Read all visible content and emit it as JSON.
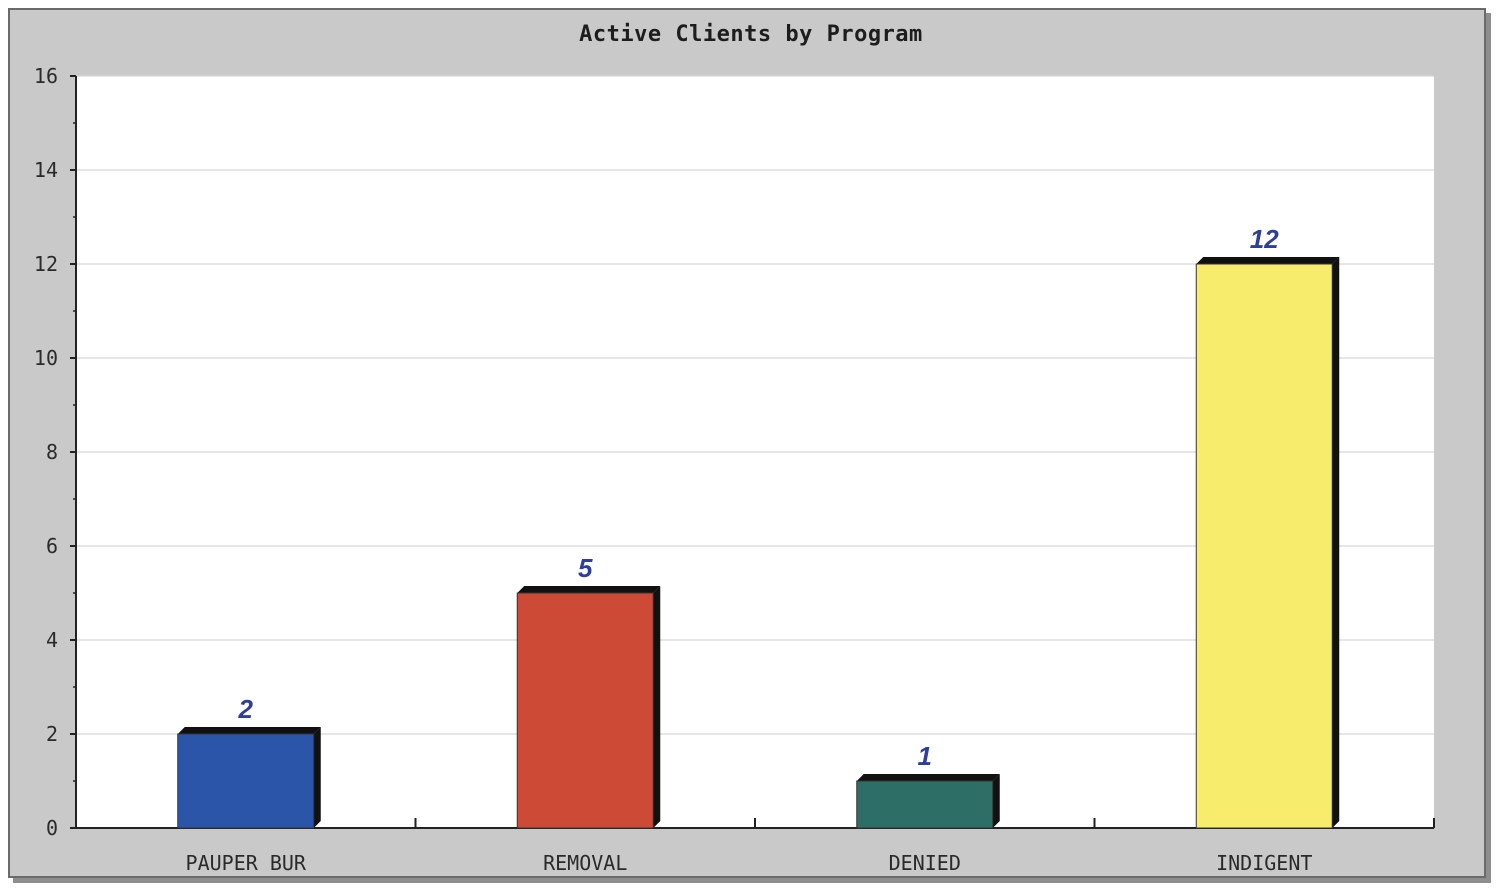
{
  "chart_data": {
    "type": "bar",
    "title": "Active Clients by Program",
    "xlabel": "",
    "ylabel": "",
    "ylim": [
      0,
      16
    ],
    "yticks": [
      0,
      2,
      4,
      6,
      8,
      10,
      12,
      14,
      16
    ],
    "grid": true,
    "categories": [
      "PAUPER BUR",
      "REMOVAL",
      "DENIED",
      "INDIGENT"
    ],
    "values": [
      2,
      5,
      1,
      12
    ],
    "data_labels": [
      "2",
      "5",
      "1",
      "12"
    ],
    "colors": [
      "#2b55a8",
      "#cc4a36",
      "#2d6f66",
      "#f8ec6c"
    ]
  }
}
